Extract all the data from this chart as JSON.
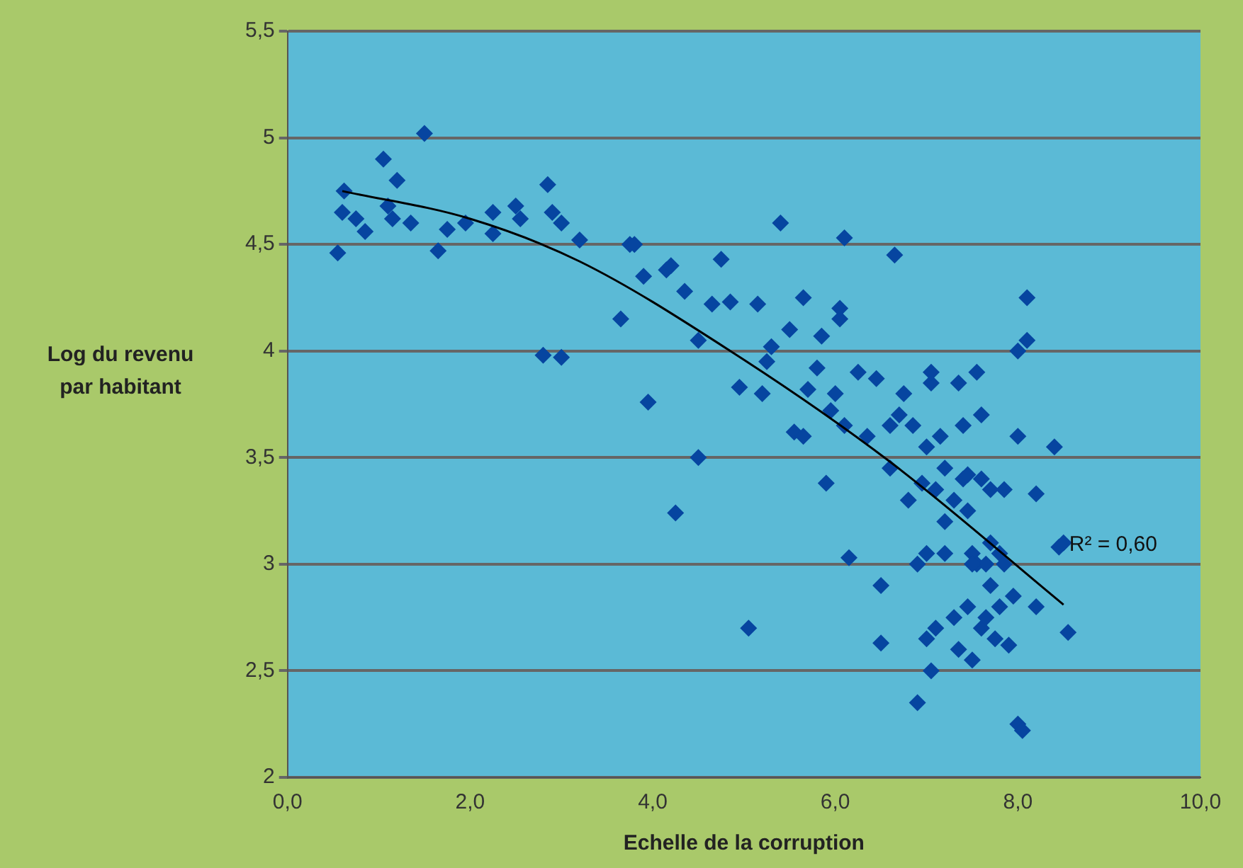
{
  "chart_data": {
    "type": "scatter",
    "xlabel": "Echelle de la corruption",
    "ylabel": "Log du revenu par habitant",
    "xlim": [
      0,
      10
    ],
    "xticks": [
      {
        "value": 0,
        "label": "0,0"
      },
      {
        "value": 2,
        "label": "2,0"
      },
      {
        "value": 4,
        "label": "4,0"
      },
      {
        "value": 6,
        "label": "6,0"
      },
      {
        "value": 8,
        "label": "8,0"
      },
      {
        "value": 10,
        "label": "10,0"
      }
    ],
    "ylim": [
      2,
      5.5
    ],
    "yticks": [
      2,
      {
        "value": 2.5,
        "label": "2,5"
      },
      3,
      {
        "value": 3.5,
        "label": "3,5"
      },
      4,
      {
        "value": 4.5,
        "label": "4,5"
      },
      5,
      {
        "value": 5.5,
        "label": "5,5"
      }
    ],
    "grid": "y",
    "legend": false,
    "marker": "diamond",
    "annotations": [
      "R² = 0,60"
    ],
    "series": [
      {
        "color": "#0645a0",
        "x": [
          0.55,
          0.6,
          0.62,
          0.75,
          0.85,
          1.05,
          1.1,
          1.15,
          1.2,
          1.35,
          1.5,
          1.65,
          1.75,
          1.95,
          2.25,
          2.25,
          2.5,
          2.55,
          2.8,
          2.85,
          2.9,
          3.0,
          3.0,
          3.2,
          3.65,
          3.75,
          3.8,
          3.9,
          3.95,
          4.15,
          4.2,
          4.25,
          4.35,
          4.5,
          4.5,
          4.65,
          4.75,
          4.85,
          4.95,
          5.05,
          5.15,
          5.2,
          5.25,
          5.3,
          5.4,
          5.5,
          5.55,
          5.65,
          5.65,
          5.7,
          5.8,
          5.85,
          5.9,
          5.95,
          6.0,
          6.05,
          6.05,
          6.1,
          6.1,
          6.15,
          6.25,
          6.35,
          6.45,
          6.5,
          6.5,
          6.6,
          6.6,
          6.65,
          6.7,
          6.75,
          6.8,
          6.85,
          6.9,
          6.9,
          7.0,
          7.0,
          7.0,
          7.05,
          7.05,
          7.05,
          7.1,
          7.1,
          7.15,
          7.2,
          7.2,
          7.2,
          7.3,
          7.3,
          7.35,
          7.35,
          7.4,
          7.4,
          7.45,
          7.45,
          7.5,
          7.5,
          7.55,
          7.55,
          7.6,
          7.6,
          7.6,
          7.65,
          7.65,
          7.7,
          7.7,
          7.75,
          7.8,
          7.8,
          7.85,
          7.85,
          7.9,
          7.95,
          8.0,
          8.0,
          8.0,
          8.05,
          8.1,
          8.1,
          8.2,
          8.2,
          8.4,
          8.45,
          8.5,
          8.55,
          7.5,
          7.45,
          6.95,
          7.7
        ],
        "values": [
          4.46,
          4.65,
          4.75,
          4.62,
          4.56,
          4.9,
          4.68,
          4.62,
          4.8,
          4.6,
          5.02,
          4.47,
          4.57,
          4.6,
          4.55,
          4.65,
          4.68,
          4.62,
          3.98,
          4.78,
          4.65,
          4.6,
          3.97,
          4.52,
          4.15,
          4.5,
          4.5,
          4.35,
          3.76,
          4.38,
          4.4,
          3.24,
          4.28,
          3.5,
          4.05,
          4.22,
          4.43,
          4.23,
          3.83,
          2.7,
          4.22,
          3.8,
          3.95,
          4.02,
          4.6,
          4.1,
          3.62,
          3.6,
          4.25,
          3.82,
          3.92,
          4.07,
          3.38,
          3.72,
          3.8,
          4.15,
          4.2,
          4.53,
          3.65,
          3.03,
          3.9,
          3.6,
          3.87,
          2.9,
          2.63,
          3.45,
          3.65,
          4.45,
          3.7,
          3.8,
          3.3,
          3.65,
          3.0,
          2.35,
          3.55,
          3.05,
          2.65,
          3.85,
          3.9,
          2.5,
          2.7,
          3.35,
          3.6,
          3.2,
          3.45,
          3.05,
          2.75,
          3.3,
          3.85,
          2.6,
          3.4,
          3.65,
          3.25,
          2.8,
          3.05,
          2.55,
          3.9,
          3.0,
          3.7,
          3.4,
          2.7,
          3.0,
          2.75,
          3.35,
          2.9,
          2.65,
          3.05,
          2.8,
          3.0,
          3.35,
          2.62,
          2.85,
          4.0,
          3.6,
          2.25,
          2.22,
          4.25,
          4.05,
          3.33,
          2.8,
          3.55,
          3.08,
          3.1,
          2.68,
          3.0,
          3.42,
          3.38,
          3.1
        ]
      },
      {
        "type": "line",
        "color": "#000000",
        "marker": "none",
        "x": [
          0.6,
          2,
          3.2,
          4.85,
          6.6,
          8.5
        ],
        "values": [
          4.75,
          4.62,
          4.42,
          4.0,
          3.48,
          2.81
        ]
      }
    ]
  }
}
